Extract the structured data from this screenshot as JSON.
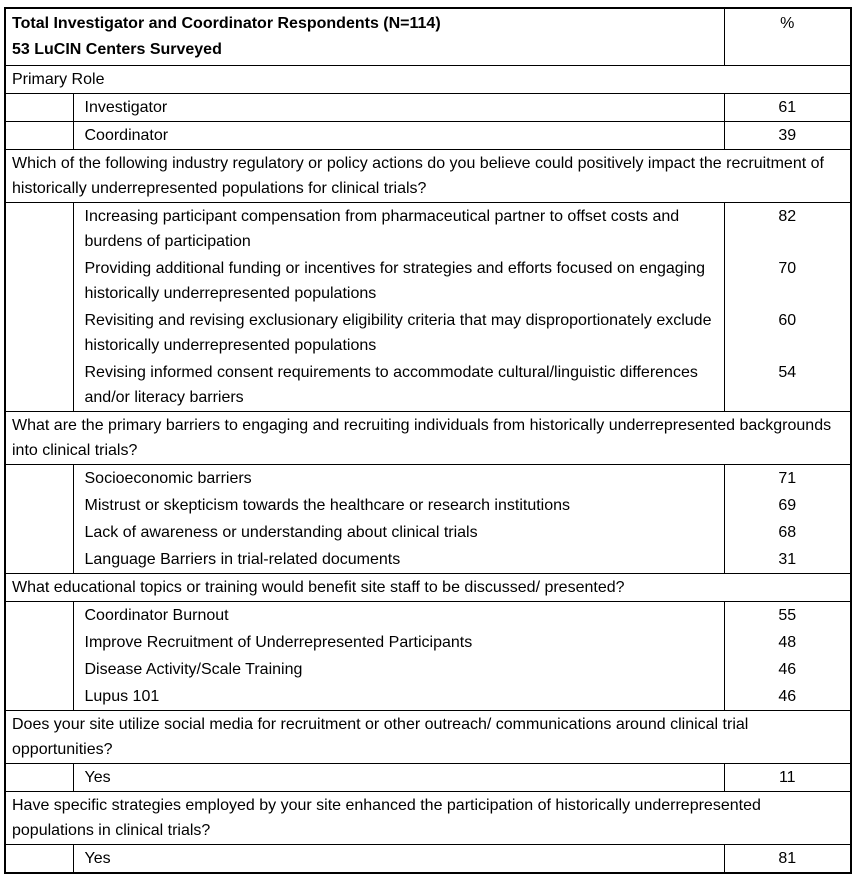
{
  "colors": {
    "background": "#ffffff",
    "border": "#000000",
    "text": "#000000"
  },
  "header": {
    "title_line1": "Total Investigator and Coordinator Respondents (N=114)",
    "title_line2": "53 LuCIN Centers Surveyed",
    "percent_label": "%"
  },
  "sections": [
    {
      "question": "Primary Role",
      "separated_items": true,
      "items": [
        {
          "label": "Investigator",
          "value": "61"
        },
        {
          "label": "Coordinator",
          "value": "39"
        }
      ]
    },
    {
      "question": "Which of the following industry regulatory or policy actions do you believe could positively impact the recruitment of historically underrepresented populations for clinical trials?",
      "separated_items": false,
      "items": [
        {
          "label": "Increasing participant compensation from pharmaceutical partner to offset costs and burdens of participation",
          "value": "82"
        },
        {
          "label": "Providing additional funding or incentives for strategies and efforts focused on engaging historically underrepresented populations",
          "value": "70"
        },
        {
          "label": "Revisiting and revising exclusionary eligibility criteria that may disproportionately exclude historically underrepresented populations",
          "value": "60"
        },
        {
          "label": "Revising informed consent requirements to accommodate cultural/linguistic differences and/or literacy barriers",
          "value": "54"
        }
      ]
    },
    {
      "question": "What are the primary barriers to engaging and recruiting individuals from historically underrepresented backgrounds into clinical trials?",
      "separated_items": false,
      "items": [
        {
          "label": "Socioeconomic barriers",
          "value": "71"
        },
        {
          "label": "Mistrust or skepticism towards the healthcare or research institutions",
          "value": "69"
        },
        {
          "label": "Lack of awareness or understanding about clinical trials",
          "value": "68"
        },
        {
          "label": "Language Barriers in trial-related documents",
          "value": "31"
        }
      ]
    },
    {
      "question": "What educational topics or training would benefit site staff to be discussed/ presented?",
      "separated_items": false,
      "items": [
        {
          "label": "Coordinator Burnout",
          "value": "55"
        },
        {
          "label": "Improve Recruitment of Underrepresented Participants",
          "value": "48"
        },
        {
          "label": "Disease Activity/Scale Training",
          "value": "46"
        },
        {
          "label": "Lupus 101",
          "value": "46"
        }
      ]
    },
    {
      "question": "Does your site utilize social media for recruitment or other outreach/ communications around clinical trial opportunities?",
      "separated_items": false,
      "items": [
        {
          "label": "Yes",
          "value": "11"
        }
      ]
    },
    {
      "question": "Have specific strategies employed by your site enhanced the participation of historically underrepresented populations in clinical trials?",
      "separated_items": false,
      "items": [
        {
          "label": "Yes",
          "value": "81"
        }
      ]
    }
  ]
}
